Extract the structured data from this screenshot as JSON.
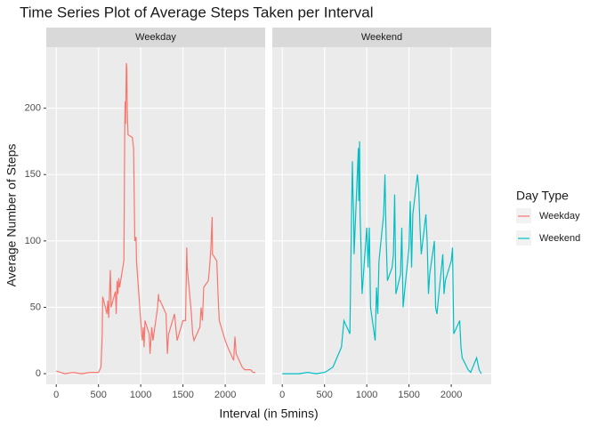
{
  "chart_data": {
    "type": "line",
    "title": "Time Series Plot of Average Steps Taken per Interval",
    "x_label": "Interval (in 5mins)",
    "y_label": "Average Number of Steps",
    "legend_title": "Day Type",
    "xlim": [
      -118,
      2473
    ],
    "ylim": [
      -8,
      246
    ],
    "xticks": [
      0,
      500,
      1000,
      1500,
      2000
    ],
    "yticks": [
      0,
      50,
      100,
      150,
      200
    ],
    "grid": true,
    "legend": "right",
    "series": [
      {
        "name": "Weekday",
        "color": "#F8766D",
        "x": [
          0,
          100,
          200,
          300,
          400,
          500,
          530,
          545,
          550,
          600,
          610,
          620,
          630,
          640,
          650,
          700,
          710,
          720,
          730,
          740,
          750,
          800,
          805,
          810,
          815,
          820,
          830,
          835,
          840,
          845,
          850,
          900,
          915,
          930,
          945,
          950,
          1000,
          1010,
          1020,
          1030,
          1040,
          1050,
          1100,
          1110,
          1130,
          1145,
          1200,
          1210,
          1215,
          1230,
          1300,
          1315,
          1330,
          1400,
          1430,
          1500,
          1530,
          1545,
          1550,
          1600,
          1615,
          1630,
          1700,
          1715,
          1730,
          1745,
          1800,
          1815,
          1830,
          1845,
          1850,
          1900,
          1915,
          1930,
          2000,
          2030,
          2100,
          2115,
          2130,
          2200,
          2230,
          2300,
          2330,
          2355
        ],
        "values": [
          2,
          0,
          1,
          0,
          1,
          1,
          5,
          30,
          58,
          45,
          55,
          42,
          60,
          78,
          50,
          62,
          45,
          70,
          60,
          72,
          65,
          85,
          120,
          180,
          205,
          188,
          234,
          230,
          200,
          190,
          180,
          178,
          170,
          100,
          103,
          85,
          40,
          30,
          25,
          35,
          20,
          40,
          30,
          15,
          35,
          25,
          50,
          60,
          55,
          55,
          45,
          15,
          30,
          45,
          25,
          40,
          40,
          95,
          80,
          45,
          30,
          25,
          35,
          50,
          40,
          65,
          70,
          80,
          95,
          118,
          90,
          85,
          60,
          40,
          25,
          20,
          10,
          28,
          15,
          5,
          3,
          3,
          1,
          1
        ]
      },
      {
        "name": "Weekend",
        "color": "#00BFC4",
        "x": [
          0,
          100,
          200,
          300,
          400,
          500,
          530,
          600,
          700,
          730,
          800,
          815,
          830,
          835,
          845,
          850,
          900,
          905,
          915,
          920,
          930,
          945,
          1000,
          1015,
          1030,
          1045,
          1100,
          1115,
          1130,
          1145,
          1200,
          1215,
          1230,
          1245,
          1300,
          1315,
          1330,
          1345,
          1400,
          1415,
          1430,
          1445,
          1500,
          1515,
          1530,
          1545,
          1600,
          1615,
          1630,
          1645,
          1700,
          1715,
          1730,
          1745,
          1800,
          1815,
          1830,
          1900,
          1915,
          1930,
          2000,
          2015,
          2030,
          2100,
          2115,
          2130,
          2200,
          2230,
          2300,
          2330,
          2355
        ],
        "values": [
          0,
          0,
          0,
          1,
          0,
          1,
          2,
          5,
          20,
          40,
          30,
          100,
          160,
          140,
          120,
          90,
          170,
          130,
          175,
          120,
          100,
          60,
          110,
          80,
          110,
          50,
          25,
          65,
          45,
          85,
          120,
          150,
          100,
          70,
          80,
          90,
          135,
          60,
          75,
          110,
          50,
          60,
          95,
          130,
          80,
          120,
          150,
          140,
          110,
          90,
          120,
          100,
          60,
          75,
          100,
          50,
          45,
          90,
          60,
          70,
          85,
          95,
          30,
          40,
          20,
          12,
          3,
          1,
          12,
          3,
          0
        ]
      }
    ]
  }
}
